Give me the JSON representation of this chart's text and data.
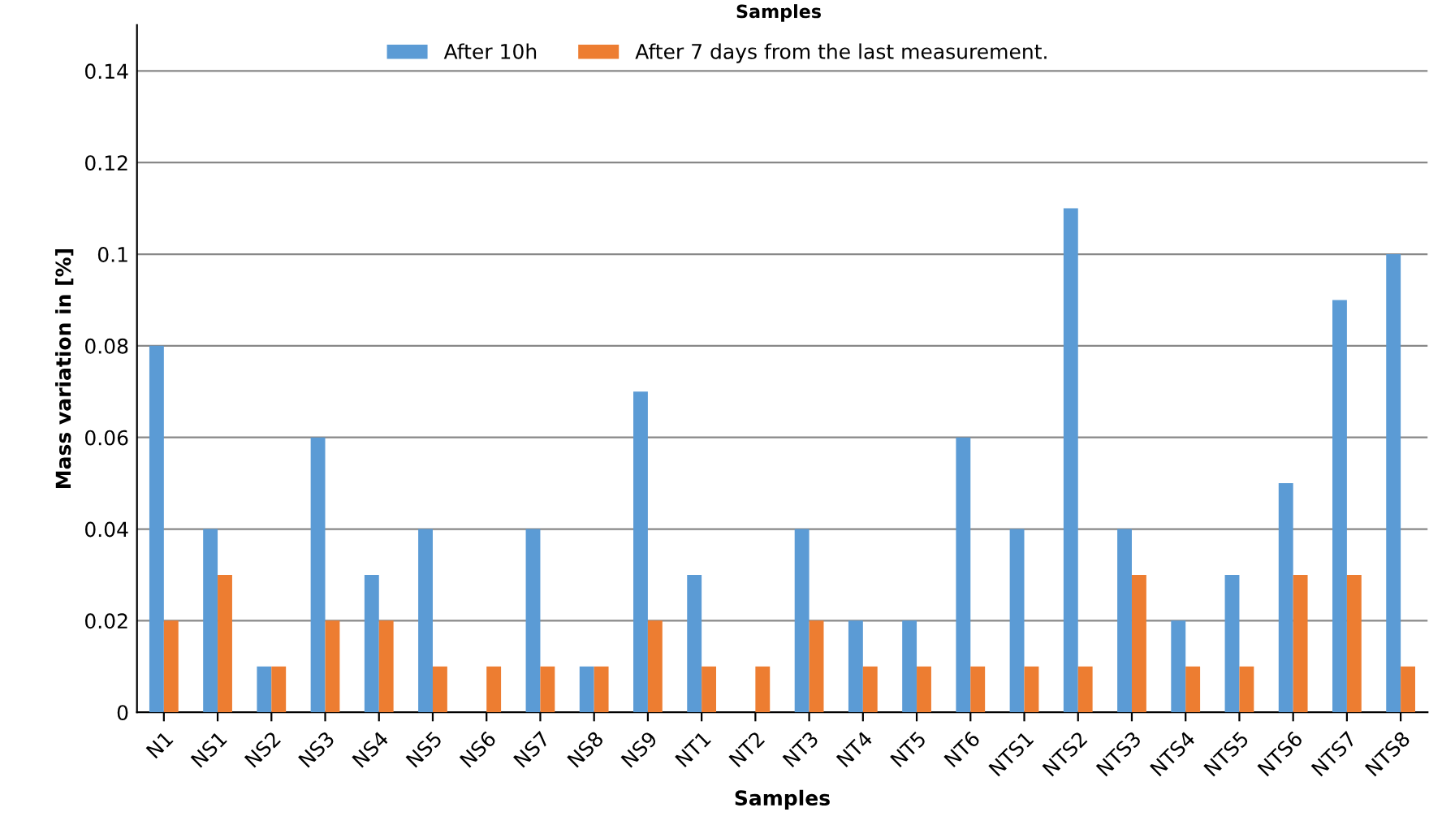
{
  "chart_data": {
    "type": "bar",
    "title": "Samples",
    "xlabel": "Samples",
    "ylabel": "Mass variation in [%]",
    "categories": [
      "N1",
      "NS1",
      "NS2",
      "NS3",
      "NS4",
      "NS5",
      "NS6",
      "NS7",
      "NS8",
      "NS9",
      "NT1",
      "NT2",
      "NT3",
      "NT4",
      "NT5",
      "NT6",
      "NTS1",
      "NTS2",
      "NTS3",
      "NTS4",
      "NTS5",
      "NTS6",
      "NTS7",
      "NTS8"
    ],
    "series": [
      {
        "name": "After 10h",
        "color": "#5b9bd5",
        "values": [
          0.08,
          0.04,
          0.01,
          0.06,
          0.03,
          0.04,
          0,
          0.04,
          0.01,
          0.07,
          0.03,
          0,
          0.04,
          0.02,
          0.02,
          0.06,
          0.04,
          0.11,
          0.04,
          0.02,
          0.03,
          0.05,
          0.09,
          0.1
        ]
      },
      {
        "name": "After 7 days from the last measurement.",
        "color": "#ed7d31",
        "values": [
          0.02,
          0.03,
          0.01,
          0.02,
          0.02,
          0.01,
          0.01,
          0.01,
          0.01,
          0.02,
          0.01,
          0.01,
          0.02,
          0.01,
          0.01,
          0.01,
          0.01,
          0.01,
          0.03,
          0.01,
          0.01,
          0.03,
          0.03,
          0.01
        ]
      }
    ],
    "ylim": [
      0,
      0.15
    ],
    "yticks": [
      0,
      0.02,
      0.04,
      0.06,
      0.08,
      0.1,
      0.12,
      0.14
    ],
    "grid": "y",
    "legend": "top"
  }
}
